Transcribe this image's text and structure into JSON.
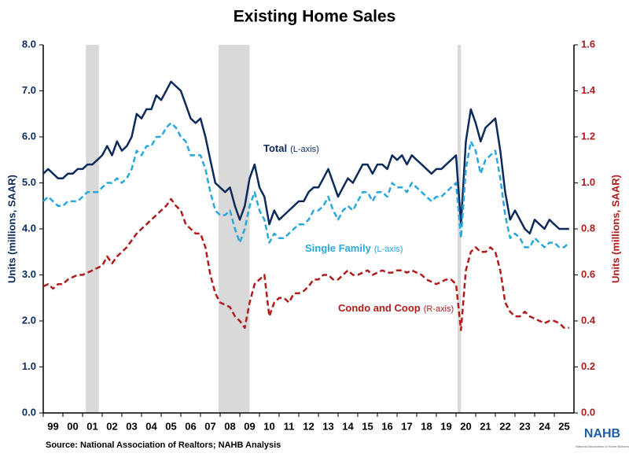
{
  "chart_data": {
    "type": "line",
    "title": "Existing Home Sales",
    "ylabel": "Units (millions, SAAR)",
    "y2label": "Units (millions, SAAR)",
    "source": "Source: National Association of Realtors; NAHB Analysis",
    "logo": {
      "name": "NAHB",
      "tagline": "National Association of Home Builders"
    },
    "xlim": [
      1999,
      2026
    ],
    "xticks": [
      {
        "value": 1999,
        "label": "99"
      },
      {
        "value": 2000,
        "label": "00"
      },
      {
        "value": 2001,
        "label": "01"
      },
      {
        "value": 2002,
        "label": "02"
      },
      {
        "value": 2003,
        "label": "03"
      },
      {
        "value": 2004,
        "label": "04"
      },
      {
        "value": 2005,
        "label": "05"
      },
      {
        "value": 2006,
        "label": "06"
      },
      {
        "value": 2007,
        "label": "07"
      },
      {
        "value": 2008,
        "label": "08"
      },
      {
        "value": 2009,
        "label": "09"
      },
      {
        "value": 2010,
        "label": "10"
      },
      {
        "value": 2011,
        "label": "11"
      },
      {
        "value": 2012,
        "label": "12"
      },
      {
        "value": 2013,
        "label": "13"
      },
      {
        "value": 2014,
        "label": "14"
      },
      {
        "value": 2015,
        "label": "15"
      },
      {
        "value": 2016,
        "label": "16"
      },
      {
        "value": 2017,
        "label": "17"
      },
      {
        "value": 2018,
        "label": "18"
      },
      {
        "value": 2019,
        "label": "19"
      },
      {
        "value": 2020,
        "label": "20"
      },
      {
        "value": 2021,
        "label": "21"
      },
      {
        "value": 2022,
        "label": "22"
      },
      {
        "value": 2023,
        "label": "23"
      },
      {
        "value": 2024,
        "label": "24"
      },
      {
        "value": 2025,
        "label": "25"
      }
    ],
    "ylim": [
      0,
      8
    ],
    "yticks": [
      {
        "value": 0,
        "label": "0.0"
      },
      {
        "value": 1,
        "label": "1.0"
      },
      {
        "value": 2,
        "label": "2.0"
      },
      {
        "value": 3,
        "label": "3.0"
      },
      {
        "value": 4,
        "label": "4.0"
      },
      {
        "value": 5,
        "label": "5.0"
      },
      {
        "value": 6,
        "label": "6.0"
      },
      {
        "value": 7,
        "label": "7.0"
      },
      {
        "value": 8,
        "label": "8.0"
      }
    ],
    "y2lim": [
      0,
      1.6
    ],
    "y2ticks": [
      {
        "value": 0,
        "label": "0.0"
      },
      {
        "value": 0.2,
        "label": "0.2"
      },
      {
        "value": 0.4,
        "label": "0.4"
      },
      {
        "value": 0.6,
        "label": "0.6"
      },
      {
        "value": 0.8,
        "label": "0.8"
      },
      {
        "value": 1,
        "label": "1.0"
      },
      {
        "value": 1.2,
        "label": "1.2"
      },
      {
        "value": 1.4,
        "label": "1.4"
      },
      {
        "value": 1.6,
        "label": "1.6"
      }
    ],
    "shaded_periods": [
      [
        2001.17,
        2001.83
      ],
      [
        2007.92,
        2009.5
      ],
      [
        2020.08,
        2020.25
      ]
    ],
    "shade_color": "#d9d9d9",
    "y_color": "#0d2a5c",
    "y2_color": "#b01c1c",
    "x": [
      1999,
      1999.25,
      1999.5,
      1999.75,
      2000,
      2000.25,
      2000.5,
      2000.75,
      2001,
      2001.25,
      2001.5,
      2001.75,
      2002,
      2002.25,
      2002.5,
      2002.75,
      2003,
      2003.25,
      2003.5,
      2003.75,
      2004,
      2004.25,
      2004.5,
      2004.75,
      2005,
      2005.25,
      2005.5,
      2005.75,
      2006,
      2006.25,
      2006.5,
      2006.75,
      2007,
      2007.25,
      2007.5,
      2007.75,
      2008,
      2008.25,
      2008.5,
      2008.75,
      2009,
      2009.25,
      2009.5,
      2009.75,
      2010,
      2010.25,
      2010.5,
      2010.75,
      2011,
      2011.25,
      2011.5,
      2011.75,
      2012,
      2012.25,
      2012.5,
      2012.75,
      2013,
      2013.25,
      2013.5,
      2013.75,
      2014,
      2014.25,
      2014.5,
      2014.75,
      2015,
      2015.25,
      2015.5,
      2015.75,
      2016,
      2016.25,
      2016.5,
      2016.75,
      2017,
      2017.25,
      2017.5,
      2017.75,
      2018,
      2018.25,
      2018.5,
      2018.75,
      2019,
      2019.25,
      2019.5,
      2019.75,
      2020,
      2020.25,
      2020.5,
      2020.75,
      2021,
      2021.25,
      2021.5,
      2021.75,
      2022,
      2022.25,
      2022.5,
      2022.75,
      2023,
      2023.25,
      2023.5,
      2023.75,
      2024,
      2024.25,
      2024.5,
      2024.75,
      2025,
      2025.25,
      2025.5,
      2025.75
    ],
    "series": [
      {
        "name": "Total",
        "note": "(L-axis)",
        "color": "#0d2a5c",
        "dash": false,
        "axis": "y",
        "values": [
          5.2,
          5.3,
          5.2,
          5.1,
          5.1,
          5.2,
          5.2,
          5.3,
          5.3,
          5.4,
          5.4,
          5.5,
          5.6,
          5.8,
          5.6,
          5.9,
          5.7,
          5.8,
          6.0,
          6.5,
          6.4,
          6.6,
          6.6,
          6.9,
          6.8,
          7.0,
          7.2,
          7.1,
          7.0,
          6.7,
          6.4,
          6.3,
          6.4,
          6.0,
          5.5,
          5.0,
          4.9,
          4.8,
          4.9,
          4.5,
          4.2,
          4.5,
          5.1,
          5.4,
          4.9,
          4.7,
          4.1,
          4.4,
          4.2,
          4.3,
          4.4,
          4.5,
          4.6,
          4.6,
          4.8,
          4.9,
          4.9,
          5.1,
          5.3,
          5.0,
          4.7,
          4.9,
          5.1,
          5.0,
          5.2,
          5.4,
          5.4,
          5.2,
          5.4,
          5.4,
          5.3,
          5.6,
          5.5,
          5.6,
          5.4,
          5.6,
          5.5,
          5.4,
          5.3,
          5.2,
          5.3,
          5.3,
          5.4,
          5.5,
          5.6,
          4.1,
          5.9,
          6.6,
          6.3,
          5.9,
          6.2,
          6.3,
          6.4,
          5.7,
          4.8,
          4.2,
          4.4,
          4.2,
          4.0,
          3.9,
          4.2,
          4.1,
          4.0,
          4.2,
          4.1,
          4.0,
          4.0,
          4.0
        ]
      },
      {
        "name": "Single Family",
        "note": "(L-axis)",
        "color": "#29a8dc",
        "dash": true,
        "axis": "y",
        "values": [
          4.6,
          4.7,
          4.6,
          4.5,
          4.5,
          4.6,
          4.6,
          4.6,
          4.7,
          4.8,
          4.8,
          4.8,
          4.9,
          5.0,
          5.0,
          5.1,
          5.0,
          5.1,
          5.3,
          5.7,
          5.6,
          5.8,
          5.8,
          6.0,
          6.0,
          6.2,
          6.3,
          6.2,
          6.0,
          5.9,
          5.6,
          5.6,
          5.6,
          5.3,
          4.8,
          4.4,
          4.3,
          4.3,
          4.4,
          4.0,
          3.7,
          4.0,
          4.5,
          4.8,
          4.4,
          4.2,
          3.7,
          3.9,
          3.8,
          3.8,
          3.9,
          4.0,
          4.1,
          4.1,
          4.2,
          4.4,
          4.4,
          4.5,
          4.7,
          4.4,
          4.2,
          4.4,
          4.5,
          4.4,
          4.6,
          4.8,
          4.8,
          4.6,
          4.8,
          4.8,
          4.7,
          5.0,
          4.9,
          4.9,
          4.8,
          5.0,
          4.9,
          4.8,
          4.7,
          4.6,
          4.7,
          4.7,
          4.8,
          4.9,
          5.0,
          3.8,
          5.3,
          5.9,
          5.7,
          5.2,
          5.5,
          5.6,
          5.7,
          5.1,
          4.3,
          3.8,
          3.9,
          3.8,
          3.6,
          3.6,
          3.8,
          3.7,
          3.6,
          3.7,
          3.7,
          3.6,
          3.6,
          3.7
        ]
      },
      {
        "name": "Condo and Coop",
        "note": "(R-axis)",
        "color": "#b01c1c",
        "dash": true,
        "axis": "y2",
        "values": [
          0.55,
          0.56,
          0.54,
          0.56,
          0.56,
          0.58,
          0.59,
          0.6,
          0.6,
          0.61,
          0.62,
          0.63,
          0.64,
          0.68,
          0.65,
          0.68,
          0.7,
          0.72,
          0.75,
          0.78,
          0.8,
          0.82,
          0.84,
          0.86,
          0.88,
          0.9,
          0.93,
          0.9,
          0.88,
          0.82,
          0.8,
          0.78,
          0.78,
          0.72,
          0.6,
          0.52,
          0.48,
          0.47,
          0.46,
          0.42,
          0.4,
          0.37,
          0.48,
          0.56,
          0.58,
          0.6,
          0.42,
          0.48,
          0.5,
          0.5,
          0.48,
          0.52,
          0.52,
          0.53,
          0.55,
          0.58,
          0.58,
          0.6,
          0.6,
          0.58,
          0.58,
          0.6,
          0.62,
          0.6,
          0.6,
          0.61,
          0.62,
          0.6,
          0.61,
          0.62,
          0.61,
          0.61,
          0.62,
          0.62,
          0.61,
          0.62,
          0.61,
          0.6,
          0.58,
          0.57,
          0.56,
          0.57,
          0.58,
          0.58,
          0.56,
          0.36,
          0.62,
          0.7,
          0.72,
          0.7,
          0.7,
          0.72,
          0.7,
          0.62,
          0.48,
          0.44,
          0.42,
          0.42,
          0.44,
          0.42,
          0.41,
          0.4,
          0.39,
          0.4,
          0.4,
          0.39,
          0.37,
          0.37
        ]
      }
    ]
  }
}
